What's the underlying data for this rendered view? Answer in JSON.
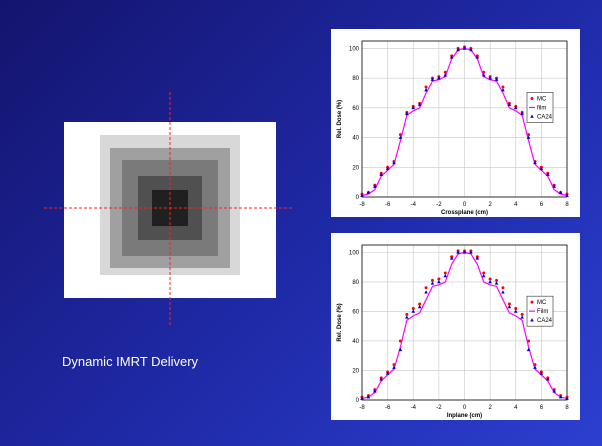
{
  "caption": "Dynamic IMRT Delivery",
  "chart_data": [
    {
      "type": "line",
      "xlabel": "Crossplane (cm)",
      "ylabel": "Rel. Dose (%)",
      "x": [
        -8,
        -7.5,
        -7,
        -6.5,
        -6,
        -5.5,
        -5,
        -4.5,
        -4,
        -3.5,
        -3,
        -2.5,
        -2,
        -1.5,
        -1,
        -0.5,
        0,
        0.5,
        1,
        1.5,
        2,
        2.5,
        3,
        3.5,
        4,
        4.5,
        5,
        5.5,
        6,
        6.5,
        7,
        7.5,
        8
      ],
      "xlim": [
        -8,
        8
      ],
      "xticks": [
        -8,
        -6,
        -4,
        -2,
        0,
        2,
        4,
        6,
        8
      ],
      "ylim": [
        0,
        105
      ],
      "yticks": [
        0,
        20,
        40,
        60,
        80,
        100
      ],
      "grid": true,
      "legend": "right",
      "series": [
        {
          "name": "MC",
          "color": "#ff0000",
          "marker": "circle",
          "values": [
            2,
            3,
            8,
            16,
            20,
            24,
            42,
            57,
            61,
            63,
            74,
            80,
            81,
            84,
            95,
            100,
            101,
            100,
            95,
            84,
            81,
            80,
            74,
            63,
            61,
            57,
            42,
            24,
            20,
            16,
            8,
            3,
            2
          ]
        },
        {
          "name": "film",
          "color": "#ff00ff",
          "marker": "none",
          "values": [
            1,
            2,
            5,
            14,
            18,
            22,
            38,
            55,
            58,
            60,
            70,
            78,
            79,
            81,
            93,
            99,
            100,
            99,
            93,
            81,
            79,
            78,
            70,
            60,
            58,
            55,
            38,
            22,
            18,
            14,
            5,
            2,
            1
          ]
        },
        {
          "name": "CA24",
          "color": "#0000cc",
          "marker": "triangle",
          "values": [
            1,
            3,
            7,
            15,
            19,
            23,
            40,
            56,
            60,
            62,
            72,
            79,
            80,
            82,
            94,
            99,
            100,
            99,
            94,
            82,
            80,
            79,
            72,
            62,
            60,
            56,
            40,
            23,
            19,
            15,
            7,
            3,
            1
          ]
        }
      ]
    },
    {
      "type": "line",
      "xlabel": "Inplane (cm)",
      "ylabel": "Rel. Dose (%)",
      "x": [
        -8,
        -7.5,
        -7,
        -6.5,
        -6,
        -5.5,
        -5,
        -4.5,
        -4,
        -3.5,
        -3,
        -2.5,
        -2,
        -1.5,
        -1,
        -0.5,
        0,
        0.5,
        1,
        1.5,
        2,
        2.5,
        3,
        3.5,
        4,
        4.5,
        5,
        5.5,
        6,
        6.5,
        7,
        7.5,
        8
      ],
      "xlim": [
        -8,
        8
      ],
      "xticks": [
        -8,
        -6,
        -4,
        -2,
        0,
        2,
        4,
        6,
        8
      ],
      "ylim": [
        0,
        105
      ],
      "yticks": [
        0,
        20,
        40,
        60,
        80,
        100
      ],
      "grid": true,
      "legend": "right",
      "series": [
        {
          "name": "MC",
          "color": "#ff0000",
          "marker": "circle",
          "values": [
            2,
            3,
            7,
            15,
            19,
            24,
            40,
            58,
            62,
            65,
            76,
            81,
            82,
            86,
            97,
            101,
            101,
            101,
            97,
            86,
            82,
            81,
            76,
            65,
            62,
            58,
            40,
            24,
            19,
            15,
            7,
            3,
            2
          ]
        },
        {
          "name": "Film",
          "color": "#ff00ff",
          "marker": "none",
          "values": [
            1,
            2,
            5,
            13,
            17,
            21,
            36,
            54,
            57,
            59,
            68,
            77,
            78,
            80,
            92,
            99,
            100,
            99,
            92,
            80,
            78,
            77,
            68,
            59,
            57,
            54,
            36,
            21,
            17,
            13,
            5,
            2,
            1
          ]
        },
        {
          "name": "CA24",
          "color": "#0000cc",
          "marker": "triangle",
          "values": [
            1,
            2,
            6,
            14,
            18,
            22,
            34,
            56,
            60,
            63,
            73,
            79,
            80,
            84,
            96,
            100,
            100,
            100,
            96,
            84,
            80,
            79,
            73,
            63,
            60,
            56,
            34,
            22,
            18,
            14,
            6,
            2,
            1
          ]
        }
      ]
    }
  ]
}
